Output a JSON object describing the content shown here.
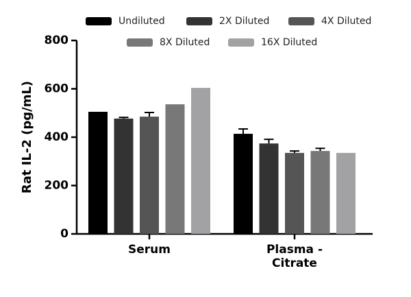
{
  "chart_data": {
    "type": "bar",
    "y_label": "Rat IL-2 (pg/mL)",
    "categories": [
      "Serum",
      "Plasma - Citrate"
    ],
    "series": [
      {
        "name": "Undiluted",
        "color": "#000000",
        "values": [
          505,
          414
        ],
        "errors": [
          null,
          20
        ]
      },
      {
        "name": "2X Diluted",
        "color": "#333333",
        "values": [
          477,
          374
        ],
        "errors": [
          5,
          17
        ]
      },
      {
        "name": "4X Diluted",
        "color": "#555555",
        "values": [
          485,
          335
        ],
        "errors": [
          17,
          8
        ]
      },
      {
        "name": "8X Diluted",
        "color": "#787878",
        "values": [
          536,
          343
        ],
        "errors": [
          null,
          11
        ]
      },
      {
        "name": "16X Diluted",
        "color": "#a2a2a5",
        "values": [
          604,
          335
        ],
        "errors": [
          null,
          null
        ]
      }
    ],
    "ylim": [
      0,
      800
    ],
    "yticks": [
      0,
      200,
      400,
      600,
      800
    ]
  }
}
